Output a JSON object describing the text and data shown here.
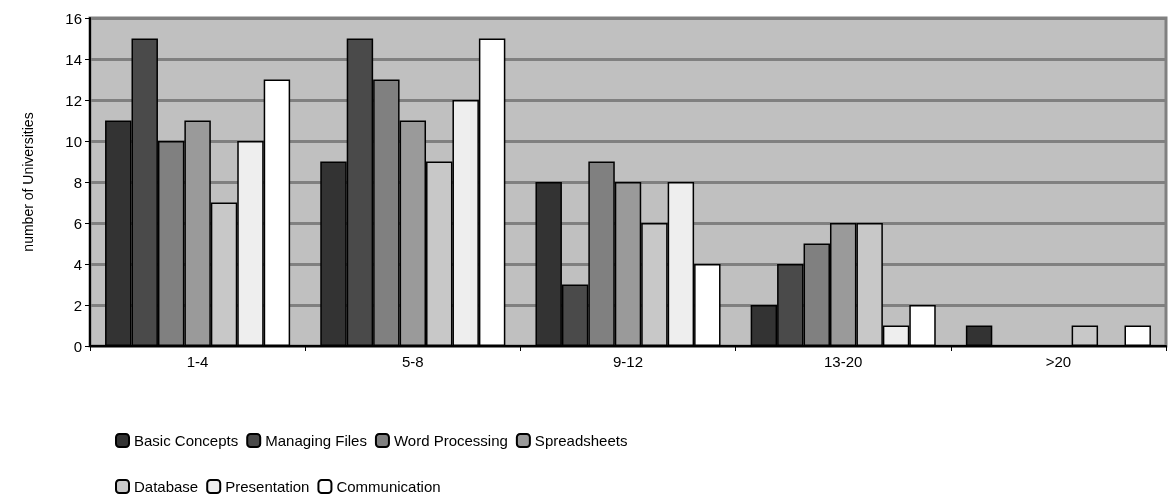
{
  "chart_data": {
    "type": "bar",
    "ylabel": "number of Universities",
    "categories": [
      "1-4",
      "5-8",
      "9-12",
      "13-20",
      ">20"
    ],
    "series": [
      {
        "name": "Basic Concepts",
        "color": "#333333",
        "values": [
          11,
          9,
          8,
          2,
          1
        ]
      },
      {
        "name": "Managing Files",
        "color": "#4a4a4a",
        "values": [
          15,
          15,
          3,
          4,
          0
        ]
      },
      {
        "name": "Word Processing",
        "color": "#808080",
        "values": [
          10,
          13,
          9,
          5,
          0
        ]
      },
      {
        "name": "Spreadsheets",
        "color": "#9a9a9a",
        "values": [
          11,
          11,
          8,
          6,
          0
        ]
      },
      {
        "name": "Database",
        "color": "#c8c8c8",
        "values": [
          7,
          9,
          6,
          6,
          1
        ]
      },
      {
        "name": "Presentation",
        "color": "#eeeeee",
        "values": [
          10,
          12,
          8,
          1,
          0
        ]
      },
      {
        "name": "Communication",
        "color": "#ffffff",
        "values": [
          13,
          15,
          4,
          2,
          1
        ]
      }
    ],
    "ylim": [
      0,
      16
    ],
    "yticks": [
      0,
      2,
      4,
      6,
      8,
      10,
      12,
      14,
      16
    ],
    "grid": "y",
    "legend": "bottom"
  }
}
